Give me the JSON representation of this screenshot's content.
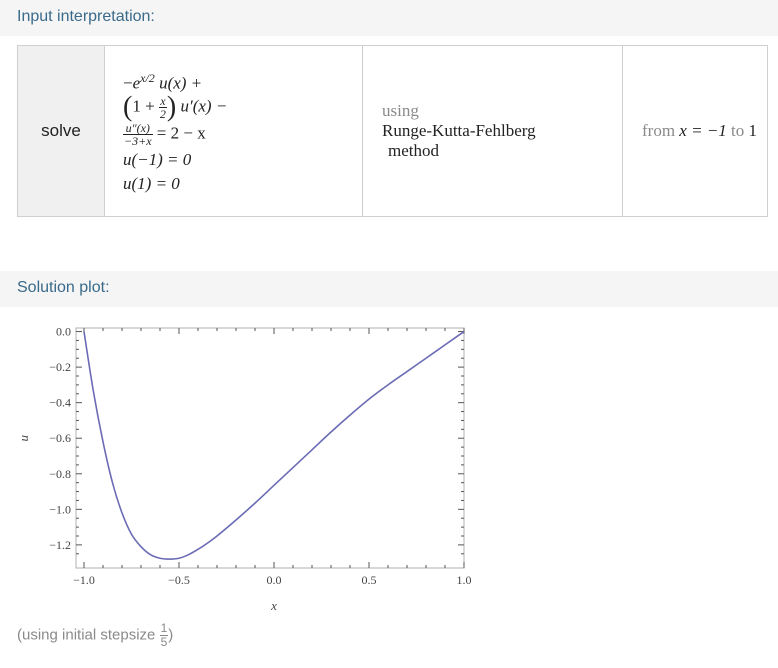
{
  "sections": {
    "input_header": "Input interpretation:",
    "plot_header": "Solution plot:"
  },
  "input": {
    "command": "solve",
    "equation": {
      "t1_sign": "−",
      "t1_base": "e",
      "t1_exp": "x/2",
      "t1_fn": "u(x) +",
      "t2_lparen": "(",
      "t2_one": "1 +",
      "t2_frac_num": "x",
      "t2_frac_den": "2",
      "t2_rparen": ")",
      "t2_fn": "u′(x) −",
      "t3_num": "u″(x)",
      "t3_den": "−3+x",
      "t3_rhs": "= 2 − x",
      "bc1": "u(−1) = 0",
      "bc2": "u(1) = 0"
    },
    "method_prefix": "using",
    "method_name": "Runge-Kutta-Fehlberg",
    "method_suffix": "method",
    "range": {
      "from": "from",
      "start": "x = −1",
      "to": "to",
      "end": "1"
    }
  },
  "plot_labels": {
    "xlabel": "x",
    "ylabel": "u"
  },
  "footnote": {
    "prefix": "(using initial stepsize",
    "num": "1",
    "den": "5",
    "suffix": ")"
  },
  "colors": {
    "header_text": "#3a6a8a",
    "curve": "#6b6bb5",
    "frame": "#b0b0b0"
  },
  "chart_data": {
    "type": "line",
    "title": "Solution plot",
    "xlabel": "x",
    "ylabel": "u",
    "xlim": [
      -1.0,
      1.0
    ],
    "ylim": [
      -1.33,
      0.02
    ],
    "xticks": [
      -1.0,
      -0.5,
      0.0,
      0.5,
      1.0
    ],
    "xtick_labels": [
      "−1.0",
      "−0.5",
      "0.0",
      "0.5",
      "1.0"
    ],
    "yticks": [
      0.0,
      -0.2,
      -0.4,
      -0.6,
      -0.8,
      -1.0,
      -1.2
    ],
    "ytick_labels": [
      "0.0",
      "−0.2",
      "−0.4",
      "−0.6",
      "−0.8",
      "−1.0",
      "−1.2"
    ],
    "grid": false,
    "series": [
      {
        "name": "u(x)",
        "x": [
          -1.0,
          -0.95,
          -0.9,
          -0.85,
          -0.8,
          -0.75,
          -0.7,
          -0.65,
          -0.6,
          -0.55,
          -0.5,
          -0.45,
          -0.4,
          -0.35,
          -0.3,
          -0.2,
          -0.1,
          0.0,
          0.1,
          0.2,
          0.3,
          0.4,
          0.5,
          0.6,
          0.7,
          0.8,
          0.9,
          1.0
        ],
        "y": [
          0.0,
          -0.34,
          -0.62,
          -0.85,
          -1.02,
          -1.14,
          -1.21,
          -1.255,
          -1.275,
          -1.28,
          -1.275,
          -1.255,
          -1.225,
          -1.19,
          -1.15,
          -1.06,
          -0.965,
          -0.865,
          -0.765,
          -0.665,
          -0.565,
          -0.47,
          -0.38,
          -0.3,
          -0.225,
          -0.15,
          -0.075,
          0.0
        ]
      }
    ]
  }
}
